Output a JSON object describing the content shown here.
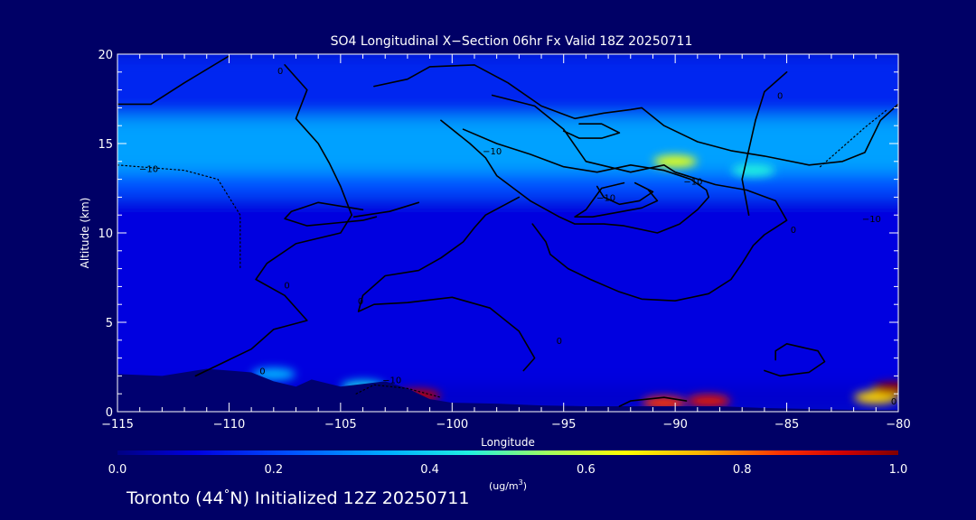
{
  "chart_data": {
    "type": "heatmap",
    "title": "SO4 Longitudinal X−Section 06hr  Fx Valid 18Z 20250711",
    "xlabel": "Longitude",
    "ylabel": "Altitude (km)",
    "xlim": [
      -115,
      -80
    ],
    "ylim": [
      0,
      20
    ],
    "x_ticks": [
      -115,
      -110,
      -105,
      -100,
      -95,
      -90,
      -85,
      -80
    ],
    "x_tick_labels": [
      "−115",
      "−110",
      "−105",
      "−100",
      "−95",
      "−90",
      "−85",
      "−80"
    ],
    "y_ticks": [
      0,
      5,
      10,
      15,
      20
    ],
    "y_tick_labels": [
      "0",
      "5",
      "10",
      "15",
      "20"
    ],
    "colorbar": {
      "ticks": [
        0.0,
        0.2,
        0.4,
        0.6,
        0.8,
        1.0
      ],
      "tick_labels": [
        "0.0",
        "0.2",
        "0.4",
        "0.6",
        "0.8",
        "1.0"
      ],
      "unit_base": "(ug/m",
      "unit_sup": "3",
      "unit_close": ")"
    },
    "heat_bands": [
      {
        "lon_range": [
          -115,
          -80
        ],
        "alt_range": [
          16.5,
          20
        ],
        "value": 0.16
      },
      {
        "lon_range": [
          -115,
          -80
        ],
        "alt_range": [
          13.3,
          16.5
        ],
        "value": 0.33
      },
      {
        "lon_range": [
          -115,
          -80
        ],
        "alt_range": [
          12.0,
          13.3
        ],
        "value": 0.22
      },
      {
        "lon_range": [
          -115,
          -80
        ],
        "alt_range": [
          1.5,
          12.0
        ],
        "value": 0.1
      },
      {
        "lon_range": [
          -115,
          -80
        ],
        "alt_range": [
          0,
          1.5
        ],
        "value": 0.08
      }
    ],
    "heat_blobs": [
      {
        "lon": -90,
        "alt": 14.0,
        "value": 0.62
      },
      {
        "lon": -86.5,
        "alt": 13.5,
        "value": 0.45
      },
      {
        "lon": -101.5,
        "alt": 0.9,
        "value": 0.95
      },
      {
        "lon": -90.5,
        "alt": 0.5,
        "value": 0.85
      },
      {
        "lon": -88.5,
        "alt": 0.6,
        "value": 0.9
      },
      {
        "lon": -81,
        "alt": 0.8,
        "value": 0.7
      },
      {
        "lon": -80.2,
        "alt": 1.3,
        "value": 0.98
      },
      {
        "lon": -108,
        "alt": 2.1,
        "value": 0.35
      },
      {
        "lon": -104,
        "alt": 1.4,
        "value": 0.4
      }
    ],
    "terrain": [
      [
        -115,
        2.1
      ],
      [
        -113,
        2.0
      ],
      [
        -111,
        2.4
      ],
      [
        -109,
        2.2
      ],
      [
        -108,
        1.7
      ],
      [
        -107,
        1.4
      ],
      [
        -106.3,
        1.8
      ],
      [
        -105,
        1.4
      ],
      [
        -103,
        1.7
      ],
      [
        -102,
        1.3
      ],
      [
        -101,
        0.7
      ],
      [
        -100,
        0.5
      ],
      [
        -98,
        0.45
      ],
      [
        -96,
        0.35
      ],
      [
        -94,
        0.3
      ],
      [
        -92,
        0.3
      ],
      [
        -90,
        0.3
      ],
      [
        -88,
        0.3
      ],
      [
        -86,
        0.2
      ],
      [
        -84,
        0.15
      ],
      [
        -82,
        0.1
      ],
      [
        -80,
        0.1
      ]
    ],
    "contours": [
      {
        "level": 0,
        "style": "solid",
        "points": [
          [
            -115,
            17.2
          ],
          [
            -113.5,
            17.2
          ],
          [
            -112,
            18.4
          ],
          [
            -110,
            19.9
          ]
        ]
      },
      {
        "level": 0,
        "style": "solid",
        "points": [
          [
            -107.5,
            19.4
          ],
          [
            -106.5,
            18
          ],
          [
            -107,
            16.4
          ],
          [
            -106,
            15.0
          ],
          [
            -105.5,
            13.9
          ],
          [
            -105,
            12.6
          ],
          [
            -104.5,
            11.0
          ],
          [
            -105,
            10
          ],
          [
            -107,
            9.4
          ],
          [
            -108.3,
            8.3
          ],
          [
            -108.8,
            7.4
          ],
          [
            -107.5,
            6.5
          ],
          [
            -106.5,
            5.1
          ],
          [
            -108,
            4.6
          ],
          [
            -109,
            3.5
          ],
          [
            -110.5,
            2.6
          ],
          [
            -111.5,
            2.0
          ]
        ]
      },
      {
        "level": 0,
        "style": "solid",
        "points": [
          [
            -96.8,
            2.3
          ],
          [
            -96.3,
            3.0
          ],
          [
            -97,
            4.5
          ],
          [
            -98.3,
            5.8
          ],
          [
            -100,
            6.4
          ],
          [
            -102,
            6.1
          ],
          [
            -103.5,
            6.0
          ],
          [
            -104.2,
            5.6
          ],
          [
            -104,
            6.5
          ],
          [
            -103,
            7.6
          ],
          [
            -101.5,
            7.9
          ],
          [
            -100.5,
            8.6
          ],
          [
            -99.5,
            9.5
          ],
          [
            -99,
            10.3
          ],
          [
            -98.5,
            11.0
          ],
          [
            -97,
            12.0
          ]
        ]
      },
      {
        "level": 0,
        "style": "solid",
        "points": [
          [
            -103.5,
            18.2
          ],
          [
            -102,
            18.6
          ],
          [
            -101,
            19.3
          ],
          [
            -99,
            19.4
          ],
          [
            -97.5,
            18.4
          ],
          [
            -96,
            17.1
          ],
          [
            -94.5,
            16.4
          ],
          [
            -93.2,
            16.7
          ],
          [
            -92,
            16.9
          ],
          [
            -91.5,
            17.0
          ],
          [
            -90.5,
            16.0
          ],
          [
            -89,
            15.1
          ],
          [
            -87.5,
            14.6
          ],
          [
            -86,
            14.3
          ],
          [
            -84,
            13.8
          ],
          [
            -82.5,
            14.0
          ],
          [
            -81.5,
            14.5
          ],
          [
            -80.8,
            16.3
          ],
          [
            -80,
            17.2
          ]
        ]
      },
      {
        "level": 0,
        "style": "solid",
        "points": [
          [
            -98.2,
            17.7
          ],
          [
            -96.3,
            17.1
          ],
          [
            -95,
            15.8
          ],
          [
            -94,
            14.0
          ],
          [
            -92,
            13.4
          ],
          [
            -90.5,
            13.8
          ],
          [
            -90,
            13.4
          ],
          [
            -88.2,
            12.7
          ],
          [
            -86.8,
            12.4
          ],
          [
            -85.5,
            11.8
          ],
          [
            -85,
            10.7
          ],
          [
            -86,
            9.9
          ],
          [
            -86.5,
            9.3
          ],
          [
            -87,
            8.3
          ],
          [
            -87.5,
            7.4
          ],
          [
            -88.5,
            6.6
          ],
          [
            -90,
            6.2
          ],
          [
            -91.5,
            6.3
          ],
          [
            -92.5,
            6.7
          ],
          [
            -93.8,
            7.4
          ],
          [
            -94.8,
            8.0
          ],
          [
            -95.6,
            8.8
          ],
          [
            -95.8,
            9.5
          ],
          [
            -96.4,
            10.5
          ]
        ]
      },
      {
        "level": -10,
        "style": "solid",
        "points": [
          [
            -100.5,
            16.3
          ],
          [
            -99.2,
            15.0
          ],
          [
            -98.5,
            14.2
          ],
          [
            -98,
            13.2
          ],
          [
            -96.5,
            11.8
          ],
          [
            -95.2,
            10.9
          ],
          [
            -94.5,
            10.5
          ],
          [
            -93.2,
            10.5
          ],
          [
            -92.3,
            10.4
          ],
          [
            -90.8,
            10.0
          ],
          [
            -89.8,
            10.5
          ],
          [
            -89,
            11.3
          ],
          [
            -88.5,
            12.0
          ],
          [
            -88.6,
            12.4
          ],
          [
            -89.3,
            13.0
          ],
          [
            -90.5,
            13.5
          ],
          [
            -92,
            13.8
          ],
          [
            -93.5,
            13.4
          ],
          [
            -95,
            13.7
          ],
          [
            -96.5,
            14.4
          ],
          [
            -98,
            15.0
          ],
          [
            -99.5,
            15.8
          ]
        ]
      },
      {
        "level": -10,
        "style": "solid",
        "points": [
          [
            -92.3,
            12.8
          ],
          [
            -93.3,
            12.5
          ],
          [
            -94,
            11.3
          ],
          [
            -94.5,
            10.9
          ],
          [
            -93.7,
            10.9
          ],
          [
            -92.8,
            11.1
          ],
          [
            -91.5,
            11.4
          ],
          [
            -90.8,
            11.8
          ],
          [
            -91.2,
            12.4
          ]
        ]
      },
      {
        "level": -10,
        "style": "solid",
        "points": [
          [
            -93.5,
            12.6
          ],
          [
            -93.2,
            12.0
          ],
          [
            -92.5,
            11.6
          ],
          [
            -91.6,
            11.8
          ],
          [
            -91.0,
            12.3
          ],
          [
            -91.8,
            12.8
          ]
        ]
      },
      {
        "level": 0,
        "style": "solid",
        "points": [
          [
            -95,
            15.7
          ],
          [
            -94.3,
            15.3
          ],
          [
            -93.3,
            15.3
          ],
          [
            -92.5,
            15.6
          ],
          [
            -93.3,
            16.1
          ],
          [
            -94.3,
            16.1
          ]
        ]
      },
      {
        "level": 0,
        "style": "solid",
        "points": [
          [
            -104,
            11.3
          ],
          [
            -106,
            11.7
          ],
          [
            -107.2,
            11.2
          ],
          [
            -107.5,
            10.8
          ],
          [
            -106.5,
            10.4
          ],
          [
            -104,
            10.7
          ],
          [
            -103.4,
            10.9
          ]
        ]
      },
      {
        "level": 0,
        "style": "solid",
        "points": [
          [
            -104.4,
            10.9
          ],
          [
            -102.8,
            11.2
          ],
          [
            -101.5,
            11.7
          ]
        ]
      },
      {
        "level": 0,
        "style": "solid",
        "points": [
          [
            -85.5,
            2.9
          ],
          [
            -85.5,
            3.4
          ],
          [
            -85,
            3.8
          ],
          [
            -83.6,
            3.4
          ],
          [
            -83.3,
            2.8
          ],
          [
            -84,
            2.2
          ],
          [
            -85.3,
            2.0
          ],
          [
            -86,
            2.3
          ]
        ]
      },
      {
        "level": 0,
        "style": "solid",
        "points": [
          [
            -85,
            19.0
          ],
          [
            -86,
            17.9
          ],
          [
            -86.4,
            16.3
          ],
          [
            -87,
            13.0
          ],
          [
            -86.7,
            11.0
          ]
        ]
      },
      {
        "level": -10,
        "style": "solid",
        "points": [
          [
            -92.5,
            0.3
          ],
          [
            -92.0,
            0.6
          ],
          [
            -90.5,
            0.8
          ],
          [
            -89.5,
            0.6
          ]
        ]
      },
      {
        "level": -10,
        "style": "dotted",
        "points": [
          [
            -115,
            13.8
          ],
          [
            -112,
            13.5
          ],
          [
            -110.5,
            13.0
          ],
          [
            -109.5,
            11.0
          ],
          [
            -109.5,
            8.0
          ]
        ]
      },
      {
        "level": -10,
        "style": "dotted",
        "points": [
          [
            -104.3,
            1.0
          ],
          [
            -103.5,
            1.5
          ],
          [
            -102,
            1.3
          ],
          [
            -100.5,
            0.8
          ]
        ]
      },
      {
        "level": -10,
        "style": "dotted",
        "points": [
          [
            -83.5,
            13.7
          ],
          [
            -82.5,
            14.8
          ],
          [
            -81.5,
            15.9
          ],
          [
            -80.5,
            16.9
          ]
        ]
      }
    ],
    "contour_labels": [
      {
        "lon": -107.7,
        "alt": 19.1,
        "text": "0"
      },
      {
        "lon": -113.6,
        "alt": 13.6,
        "text": "−10"
      },
      {
        "lon": -98.2,
        "alt": 14.6,
        "text": "−10"
      },
      {
        "lon": -93.1,
        "alt": 12.0,
        "text": "−10"
      },
      {
        "lon": -89.2,
        "alt": 12.9,
        "text": "−10"
      },
      {
        "lon": -85.3,
        "alt": 17.7,
        "text": "0"
      },
      {
        "lon": -84.7,
        "alt": 10.2,
        "text": "0"
      },
      {
        "lon": -81.2,
        "alt": 10.8,
        "text": "−10"
      },
      {
        "lon": -107.4,
        "alt": 7.1,
        "text": "0"
      },
      {
        "lon": -104.1,
        "alt": 6.2,
        "text": "0"
      },
      {
        "lon": -108.5,
        "alt": 2.3,
        "text": "0"
      },
      {
        "lon": -102.7,
        "alt": 1.8,
        "text": "−10"
      },
      {
        "lon": -95.2,
        "alt": 4.0,
        "text": "0"
      },
      {
        "lon": -80.2,
        "alt": 0.6,
        "text": "0"
      }
    ]
  },
  "footer": {
    "prefix": "Toronto (44",
    "degree": "°",
    "suffix": "N) Initialized 12Z 20250711"
  }
}
